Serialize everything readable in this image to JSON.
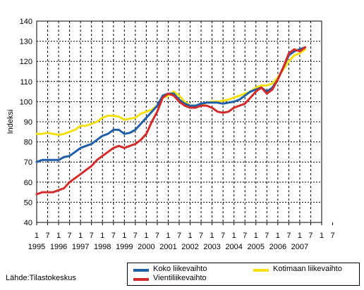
{
  "chart_data": {
    "type": "line",
    "ylabel": "Indeksi",
    "ylim": [
      40,
      140
    ],
    "yticks": [
      40,
      50,
      60,
      70,
      80,
      90,
      100,
      110,
      120,
      130,
      140
    ],
    "xlim": [
      1995.0,
      2008.0
    ],
    "x_month_ticks": [
      "1",
      "7",
      "1",
      "7",
      "1",
      "7",
      "1",
      "7",
      "1",
      "7",
      "1",
      "7",
      "1",
      "7",
      "1",
      "7",
      "1",
      "7",
      "1",
      "7",
      "1",
      "7",
      "1",
      "7",
      "1",
      "7",
      "1",
      "7"
    ],
    "x_year_labels": [
      "1995",
      "1996",
      "1997",
      "1998",
      "1999",
      "2000",
      "2001",
      "2002",
      "2003",
      "2004",
      "2005",
      "2006",
      "2007"
    ],
    "grid": true,
    "legend_position": "bottom-right",
    "series": [
      {
        "name": "Koko liikevaihto",
        "color": "#1f5fa8",
        "points": [
          [
            1995.0,
            70
          ],
          [
            1995.25,
            71
          ],
          [
            1995.5,
            71
          ],
          [
            1995.75,
            71
          ],
          [
            1996.0,
            71
          ],
          [
            1996.25,
            72.5
          ],
          [
            1996.5,
            73
          ],
          [
            1996.75,
            75
          ],
          [
            1997.0,
            77
          ],
          [
            1997.25,
            78
          ],
          [
            1997.5,
            79
          ],
          [
            1997.75,
            81
          ],
          [
            1998.0,
            83
          ],
          [
            1998.25,
            84
          ],
          [
            1998.5,
            86
          ],
          [
            1998.75,
            86
          ],
          [
            1999.0,
            84
          ],
          [
            1999.25,
            84.5
          ],
          [
            1999.5,
            86
          ],
          [
            1999.75,
            89
          ],
          [
            2000.0,
            92
          ],
          [
            2000.25,
            95
          ],
          [
            2000.5,
            98
          ],
          [
            2000.75,
            103
          ],
          [
            2001.0,
            104
          ],
          [
            2001.25,
            104
          ],
          [
            2001.5,
            101
          ],
          [
            2001.75,
            99
          ],
          [
            2002.0,
            98
          ],
          [
            2002.25,
            98
          ],
          [
            2002.5,
            99
          ],
          [
            2002.75,
            99.5
          ],
          [
            2003.0,
            99.5
          ],
          [
            2003.25,
            99.5
          ],
          [
            2003.5,
            99
          ],
          [
            2003.75,
            99.5
          ],
          [
            2004.0,
            100
          ],
          [
            2004.25,
            101
          ],
          [
            2004.5,
            103
          ],
          [
            2004.75,
            105
          ],
          [
            2005.0,
            106
          ],
          [
            2005.25,
            107
          ],
          [
            2005.5,
            105
          ],
          [
            2005.75,
            107
          ],
          [
            2006.0,
            111
          ],
          [
            2006.25,
            117
          ],
          [
            2006.5,
            123
          ],
          [
            2006.75,
            125
          ],
          [
            2007.0,
            126
          ],
          [
            2007.25,
            127
          ]
        ]
      },
      {
        "name": "Kotimaan liikevaihto",
        "color": "#f4e00e",
        "points": [
          [
            1995.0,
            84
          ],
          [
            1995.25,
            84
          ],
          [
            1995.5,
            84.5
          ],
          [
            1995.75,
            84
          ],
          [
            1996.0,
            83.5
          ],
          [
            1996.25,
            84
          ],
          [
            1996.5,
            85
          ],
          [
            1996.75,
            86
          ],
          [
            1997.0,
            88
          ],
          [
            1997.25,
            88
          ],
          [
            1997.5,
            89
          ],
          [
            1997.75,
            90
          ],
          [
            1998.0,
            92
          ],
          [
            1998.25,
            93
          ],
          [
            1998.5,
            93
          ],
          [
            1998.75,
            92.5
          ],
          [
            1999.0,
            91
          ],
          [
            1999.25,
            91.5
          ],
          [
            1999.5,
            92
          ],
          [
            1999.75,
            94
          ],
          [
            2000.0,
            95
          ],
          [
            2000.25,
            96
          ],
          [
            2000.5,
            98
          ],
          [
            2000.75,
            102
          ],
          [
            2001.0,
            103
          ],
          [
            2001.25,
            105
          ],
          [
            2001.5,
            103
          ],
          [
            2001.75,
            100
          ],
          [
            2002.0,
            98
          ],
          [
            2002.25,
            98
          ],
          [
            2002.5,
            98.5
          ],
          [
            2002.75,
            99.5
          ],
          [
            2003.0,
            100
          ],
          [
            2003.25,
            100
          ],
          [
            2003.5,
            100.5
          ],
          [
            2003.75,
            101
          ],
          [
            2004.0,
            102
          ],
          [
            2004.25,
            103
          ],
          [
            2004.5,
            104
          ],
          [
            2004.75,
            105
          ],
          [
            2005.0,
            107
          ],
          [
            2005.25,
            108
          ],
          [
            2005.5,
            108
          ],
          [
            2005.75,
            109
          ],
          [
            2006.0,
            112
          ],
          [
            2006.25,
            116
          ],
          [
            2006.5,
            120
          ],
          [
            2006.75,
            123
          ],
          [
            2007.0,
            124
          ],
          [
            2007.25,
            126
          ]
        ]
      },
      {
        "name": "Vientiliikevaihto",
        "color": "#d42a2a",
        "points": [
          [
            1995.0,
            54
          ],
          [
            1995.25,
            55
          ],
          [
            1995.5,
            55
          ],
          [
            1995.75,
            55
          ],
          [
            1996.0,
            56
          ],
          [
            1996.25,
            57
          ],
          [
            1996.5,
            60
          ],
          [
            1996.75,
            62
          ],
          [
            1997.0,
            64
          ],
          [
            1997.25,
            66
          ],
          [
            1997.5,
            68
          ],
          [
            1997.75,
            71
          ],
          [
            1998.0,
            73
          ],
          [
            1998.25,
            75
          ],
          [
            1998.5,
            77
          ],
          [
            1998.75,
            78
          ],
          [
            1999.0,
            77
          ],
          [
            1999.25,
            78
          ],
          [
            1999.5,
            79
          ],
          [
            1999.75,
            81
          ],
          [
            2000.0,
            84
          ],
          [
            2000.25,
            90
          ],
          [
            2000.5,
            95
          ],
          [
            2000.75,
            102
          ],
          [
            2001.0,
            104
          ],
          [
            2001.25,
            103
          ],
          [
            2001.5,
            100
          ],
          [
            2001.75,
            98
          ],
          [
            2002.0,
            97
          ],
          [
            2002.25,
            97
          ],
          [
            2002.5,
            98
          ],
          [
            2002.75,
            98
          ],
          [
            2003.0,
            97
          ],
          [
            2003.25,
            95
          ],
          [
            2003.5,
            94.5
          ],
          [
            2003.75,
            95
          ],
          [
            2004.0,
            97
          ],
          [
            2004.25,
            98
          ],
          [
            2004.5,
            99
          ],
          [
            2004.75,
            102
          ],
          [
            2005.0,
            105
          ],
          [
            2005.25,
            107
          ],
          [
            2005.5,
            104
          ],
          [
            2005.75,
            106
          ],
          [
            2006.0,
            111
          ],
          [
            2006.25,
            117
          ],
          [
            2006.5,
            124
          ],
          [
            2006.75,
            126
          ],
          [
            2007.0,
            125
          ],
          [
            2007.25,
            127
          ]
        ]
      }
    ]
  },
  "source": "Lähde:Tilastokeskus"
}
